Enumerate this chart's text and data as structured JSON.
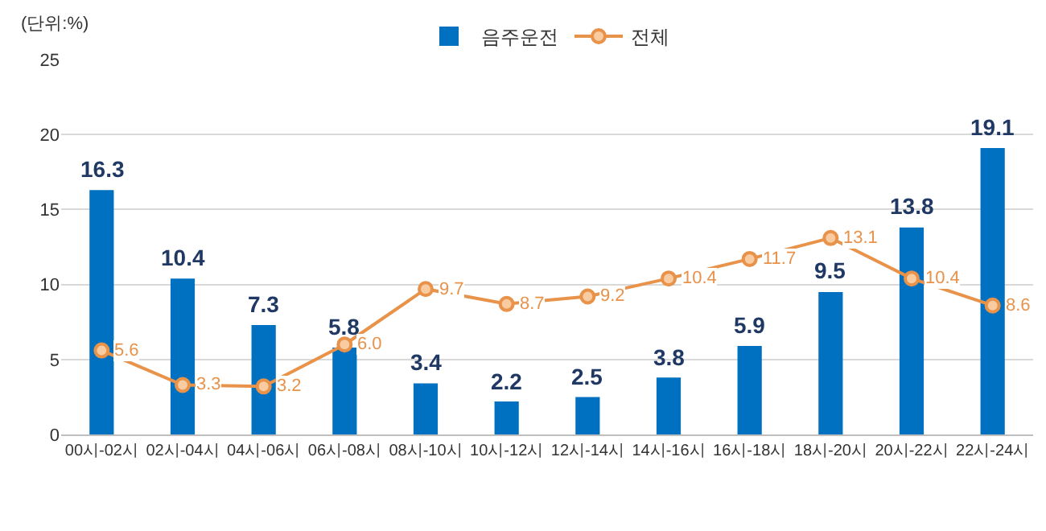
{
  "chart_data": {
    "type": "bar",
    "annotations": [
      "(단위:%)"
    ],
    "categories": [
      "00시-02시",
      "02시-04시",
      "04시-06시",
      "06시-08시",
      "08시-10시",
      "10시-12시",
      "12시-14시",
      "14시-16시",
      "16시-18시",
      "18시-20시",
      "20시-22시",
      "22시-24시"
    ],
    "series": [
      {
        "name": "음주운전",
        "color": "#0070c0",
        "values": [
          16.3,
          10.4,
          7.3,
          5.8,
          3.4,
          2.2,
          2.5,
          3.8,
          5.9,
          9.5,
          13.8,
          19.1
        ],
        "value_labels": [
          "16.3",
          "10.4",
          "7.3",
          "5.8",
          "3.4",
          "2.2",
          "2.5",
          "3.8",
          "5.9",
          "9.5",
          "13.8",
          "19.1"
        ]
      },
      {
        "name": "전체",
        "type": "line",
        "color": "#e8924a",
        "values": [
          5.6,
          3.3,
          3.2,
          6.0,
          9.7,
          8.7,
          9.2,
          10.4,
          11.7,
          13.1,
          10.4,
          8.6
        ],
        "value_labels": [
          "5.6",
          "3.3",
          "3.2",
          "6.0",
          "9.7",
          "8.7",
          "9.2",
          "10.4",
          "11.7",
          "13.1",
          "10.4",
          "8.6"
        ]
      }
    ],
    "ylim": [
      0,
      25
    ],
    "yticks": [
      0,
      5,
      10,
      15,
      20,
      25
    ],
    "grid": "y",
    "legend": "top",
    "marker": "circle",
    "line_style": "solid"
  }
}
